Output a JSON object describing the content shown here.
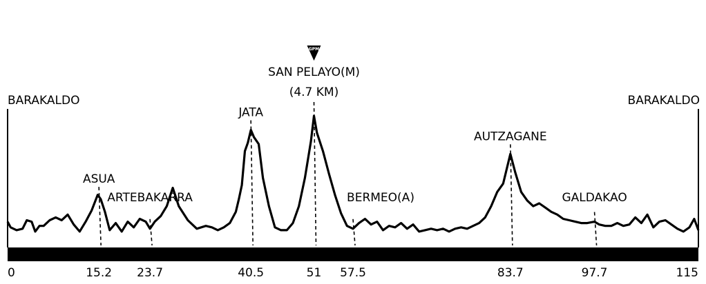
{
  "chart_data": {
    "type": "line",
    "title": "",
    "xlabel": "",
    "ylabel": "",
    "xlim": [
      0,
      115
    ],
    "ylim": [
      0,
      10
    ],
    "x_ticks": [
      {
        "km": 0,
        "label": "0"
      },
      {
        "km": 15.2,
        "label": "15.2"
      },
      {
        "km": 23.7,
        "label": "23.7"
      },
      {
        "km": 40.5,
        "label": "40.5"
      },
      {
        "km": 51,
        "label": "51"
      },
      {
        "km": 57.5,
        "label": "57.5"
      },
      {
        "km": 83.7,
        "label": "83.7"
      },
      {
        "km": 97.7,
        "label": "97.7"
      },
      {
        "km": 115,
        "label": "115"
      }
    ],
    "places": [
      {
        "name": "BARAKALDO",
        "km": 0,
        "type": "start"
      },
      {
        "name": "ASUA",
        "km": 15.2,
        "type": "point"
      },
      {
        "name": "ARTEBAKARRA",
        "km": 23.7,
        "type": "point"
      },
      {
        "name": "JATA",
        "km": 40.5,
        "type": "point"
      },
      {
        "name": "SAN PELAYO(M)",
        "sub": "(4.7 KM)",
        "km": 51,
        "type": "climb",
        "badge": "GPM"
      },
      {
        "name": "BERMEO(A)",
        "km": 57.5,
        "type": "point"
      },
      {
        "name": "AUTZAGANE",
        "km": 83.7,
        "type": "point"
      },
      {
        "name": "GALDAKAO",
        "km": 97.7,
        "type": "point"
      },
      {
        "name": "BARAKALDO",
        "km": 115,
        "type": "finish"
      }
    ],
    "elevation_profile": {
      "km": [
        0,
        0.5,
        1.5,
        2.5,
        3.2,
        4,
        4.6,
        5.3,
        6,
        7,
        8,
        9,
        10,
        11,
        12,
        13,
        14,
        15,
        15.5,
        16.2,
        17,
        18,
        19,
        20,
        21,
        22,
        23,
        23.7,
        24.5,
        25.5,
        26.5,
        27.5,
        28.5,
        30,
        31.5,
        33,
        34,
        35,
        36,
        37,
        38,
        38.5,
        39,
        39.5,
        40,
        40.5,
        41,
        41.8,
        42.5,
        43.5,
        44.5,
        45.5,
        46.5,
        47.5,
        48.5,
        49.5,
        50.5,
        51,
        51.5,
        52.5,
        53.5,
        54.5,
        55.5,
        56.5,
        57.5,
        58.5,
        59.5,
        60.5,
        61.5,
        62.5,
        63.5,
        64.5,
        65.5,
        66.5,
        67.5,
        68.5,
        69.5,
        70.5,
        71.5,
        72.5,
        73.5,
        74.5,
        75.5,
        76.5,
        77.5,
        78.5,
        79.5,
        80.5,
        81.5,
        82.5,
        83.7,
        84.5,
        85.5,
        86.5,
        87.5,
        88.5,
        89.5,
        90.5,
        91.5,
        92.5,
        93.5,
        94.5,
        95.5,
        96.5,
        97.7,
        98.5,
        99.5,
        100.5,
        101.5,
        102.5,
        103.5,
        104.5,
        105.5,
        106.5,
        107.5,
        108.5,
        109.5,
        110.5,
        111.5,
        112.5,
        113.5,
        114.3,
        115
      ],
      "elev": [
        0.9,
        0.5,
        0.3,
        0.4,
        1.0,
        0.9,
        0.2,
        0.6,
        0.6,
        1.0,
        1.2,
        1.0,
        1.4,
        0.7,
        0.2,
        0.9,
        1.7,
        2.8,
        2.5,
        1.6,
        0.3,
        0.8,
        0.2,
        0.9,
        0.5,
        1.1,
        0.9,
        0.4,
        0.9,
        1.3,
        2.0,
        3.3,
        2.0,
        1.0,
        0.4,
        0.6,
        0.5,
        0.3,
        0.5,
        0.8,
        1.6,
        2.5,
        3.5,
        5.9,
        6.5,
        7.4,
        6.9,
        6.4,
        4.0,
        2.0,
        0.5,
        0.3,
        0.3,
        0.8,
        2.0,
        4.0,
        6.6,
        8.4,
        7.2,
        5.9,
        4.3,
        2.8,
        1.5,
        0.6,
        0.4,
        0.8,
        1.1,
        0.7,
        0.9,
        0.3,
        0.6,
        0.5,
        0.8,
        0.4,
        0.7,
        0.2,
        0.3,
        0.4,
        0.3,
        0.4,
        0.2,
        0.4,
        0.5,
        0.4,
        0.6,
        0.8,
        1.2,
        2.0,
        3.0,
        3.6,
        5.7,
        4.4,
        3.0,
        2.4,
        2.0,
        2.2,
        1.9,
        1.6,
        1.4,
        1.1,
        1.0,
        0.9,
        0.8,
        0.8,
        0.9,
        0.7,
        0.6,
        0.6,
        0.8,
        0.6,
        0.7,
        1.2,
        0.8,
        1.4,
        0.5,
        0.9,
        1.0,
        0.7,
        0.4,
        0.2,
        0.5,
        1.1,
        0.3
      ]
    }
  }
}
